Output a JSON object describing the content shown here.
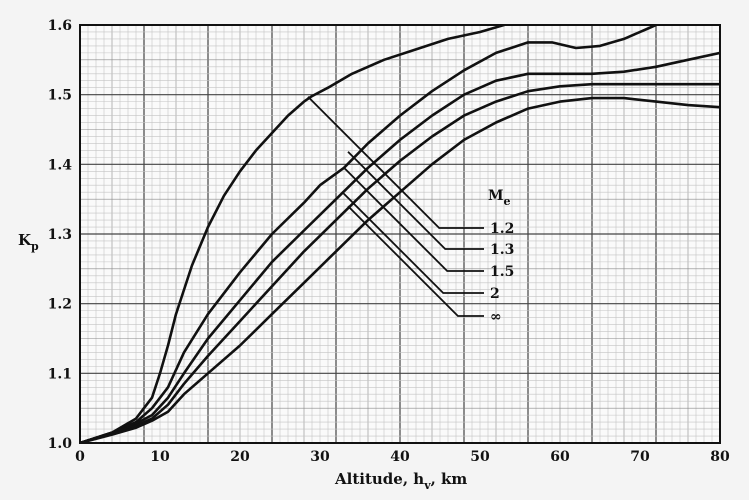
{
  "chart_data": {
    "type": "line",
    "xlabel": {
      "main": "Altitude, h",
      "sub": "v",
      "unit": ", km"
    },
    "ylabel": {
      "main": "K",
      "sub": "p"
    },
    "xlim": [
      0,
      80
    ],
    "ylim": [
      1.0,
      1.6
    ],
    "grid": true,
    "xticks": [
      "0",
      "10",
      "20",
      "30",
      "40",
      "50",
      "60",
      "70",
      "80"
    ],
    "yticks": [
      "1.0",
      "1.1",
      "1.2",
      "1.3",
      "1.4",
      "1.5",
      "1.6"
    ],
    "legend": {
      "title_main": "M",
      "title_sub": "e",
      "placement": "center-right"
    },
    "series": [
      {
        "name": "1.2",
        "x": [
          0,
          4,
          7,
          9,
          10,
          11,
          12,
          14,
          16,
          18,
          20,
          22,
          24,
          26,
          28,
          29,
          31,
          34,
          38,
          42,
          46,
          50,
          53,
          55
        ],
        "y": [
          1.0,
          1.015,
          1.035,
          1.065,
          1.1,
          1.14,
          1.185,
          1.255,
          1.31,
          1.355,
          1.39,
          1.42,
          1.445,
          1.47,
          1.49,
          1.498,
          1.51,
          1.53,
          1.55,
          1.565,
          1.58,
          1.59,
          1.6,
          1.61
        ]
      },
      {
        "name": "1.3",
        "x": [
          0,
          4,
          7,
          9,
          11,
          13,
          16,
          20,
          24,
          28,
          30,
          33,
          36,
          40,
          44,
          48,
          52,
          56,
          59,
          62,
          65,
          68,
          71,
          74
        ],
        "y": [
          1.0,
          1.015,
          1.03,
          1.05,
          1.08,
          1.13,
          1.185,
          1.245,
          1.3,
          1.345,
          1.37,
          1.395,
          1.43,
          1.47,
          1.505,
          1.535,
          1.56,
          1.575,
          1.575,
          1.567,
          1.57,
          1.58,
          1.595,
          1.61
        ]
      },
      {
        "name": "1.5",
        "x": [
          0,
          4,
          7,
          9,
          11,
          13,
          16,
          20,
          24,
          28,
          32,
          36,
          40,
          44,
          48,
          52,
          56,
          60,
          64,
          68,
          72,
          76,
          80
        ],
        "y": [
          1.0,
          1.015,
          1.028,
          1.04,
          1.065,
          1.1,
          1.15,
          1.205,
          1.26,
          1.305,
          1.35,
          1.395,
          1.435,
          1.47,
          1.5,
          1.52,
          1.53,
          1.53,
          1.53,
          1.533,
          1.54,
          1.55,
          1.56
        ]
      },
      {
        "name": "2",
        "x": [
          0,
          4,
          7,
          9,
          11,
          13,
          16,
          20,
          24,
          28,
          32,
          36,
          40,
          44,
          48,
          52,
          56,
          60,
          64,
          68,
          72,
          76,
          80
        ],
        "y": [
          1.0,
          1.014,
          1.025,
          1.035,
          1.055,
          1.085,
          1.125,
          1.175,
          1.225,
          1.275,
          1.32,
          1.365,
          1.405,
          1.44,
          1.47,
          1.49,
          1.505,
          1.512,
          1.515,
          1.515,
          1.515,
          1.515,
          1.515
        ]
      },
      {
        "name": "∞",
        "x": [
          0,
          4,
          7,
          9,
          11,
          13,
          16,
          20,
          24,
          28,
          32,
          36,
          40,
          44,
          48,
          52,
          56,
          60,
          64,
          68,
          72,
          76,
          80
        ],
        "y": [
          1.0,
          1.012,
          1.022,
          1.032,
          1.045,
          1.07,
          1.1,
          1.14,
          1.185,
          1.23,
          1.275,
          1.32,
          1.36,
          1.4,
          1.435,
          1.46,
          1.48,
          1.49,
          1.495,
          1.495,
          1.49,
          1.485,
          1.482
        ]
      }
    ]
  }
}
